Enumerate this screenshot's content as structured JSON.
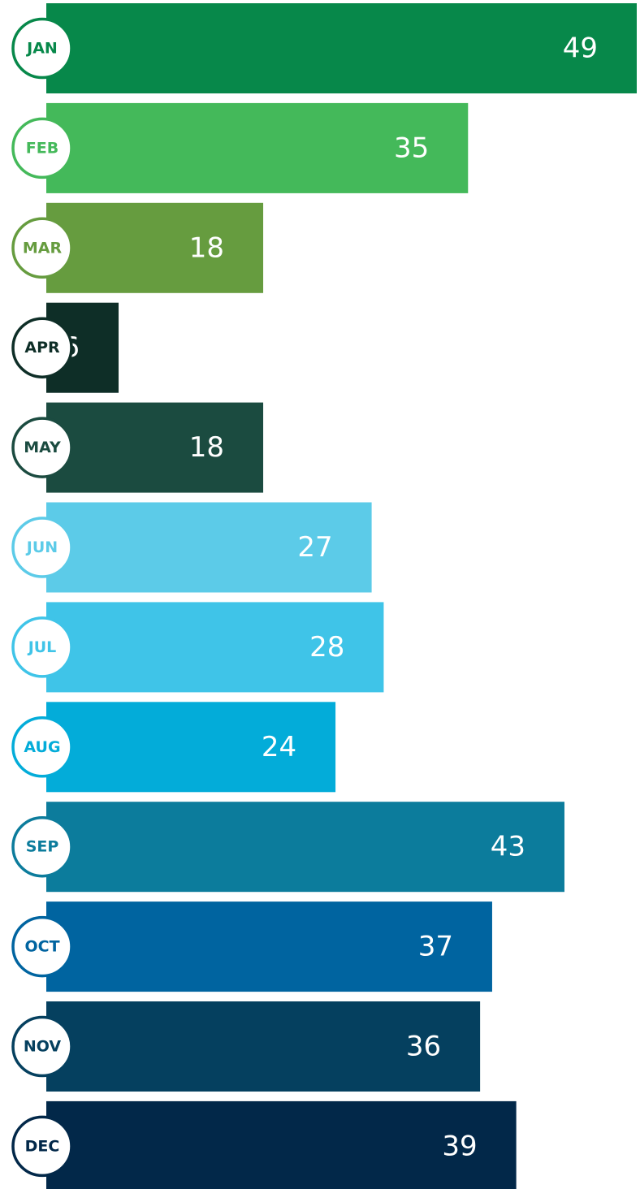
{
  "chart_data": {
    "type": "bar",
    "orientation": "horizontal",
    "categories": [
      "JAN",
      "FEB",
      "MAR",
      "APR",
      "MAY",
      "JUN",
      "JUL",
      "AUG",
      "SEP",
      "OCT",
      "NOV",
      "DEC"
    ],
    "values": [
      49,
      35,
      18,
      6,
      18,
      27,
      28,
      24,
      43,
      37,
      36,
      39
    ],
    "colors": [
      "#07884a",
      "#44b95a",
      "#669c3f",
      "#0e2e27",
      "#1b4b40",
      "#5ccbe8",
      "#3fc4e8",
      "#03acd9",
      "#0c7c9c",
      "#0064a0",
      "#05405f",
      "#022849"
    ]
  }
}
